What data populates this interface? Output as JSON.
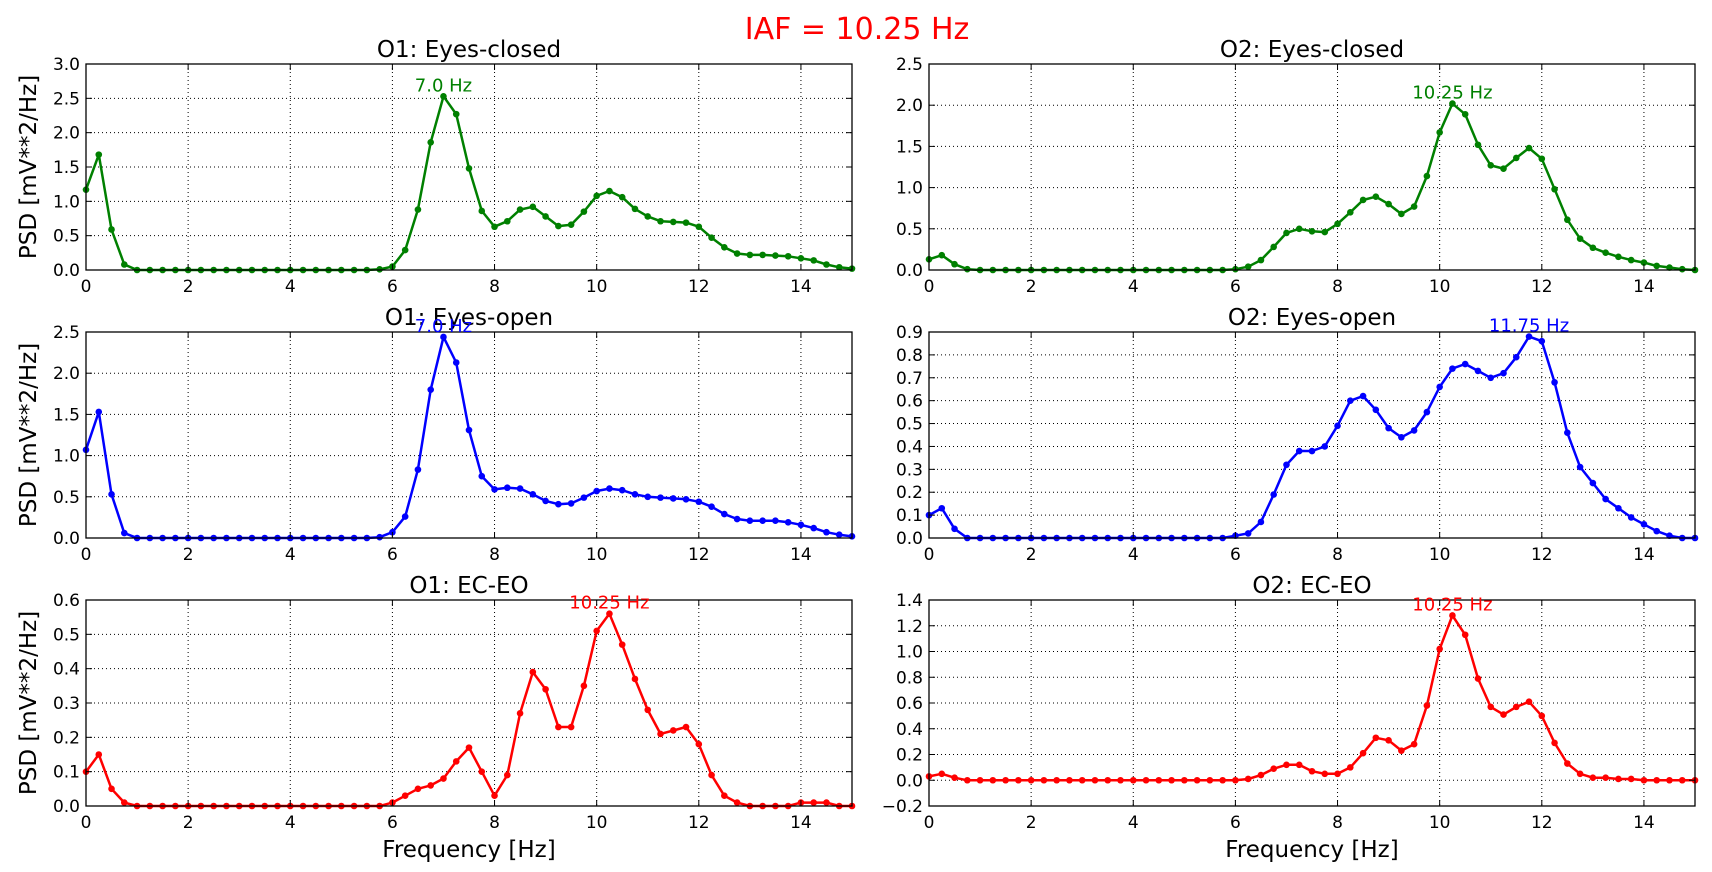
{
  "figure": {
    "suptitle": "IAF = 10.25 Hz",
    "suptitle_color": "#ff0000"
  },
  "chart_data": [
    {
      "type": "line",
      "title": "O1: Eyes-closed",
      "xlabel": "",
      "ylabel": "PSD [mV**2/Hz]",
      "xlim": [
        0,
        15
      ],
      "ylim": [
        0,
        3.0
      ],
      "xticks": [
        "0",
        "2",
        "4",
        "6",
        "8",
        "10",
        "12",
        "14"
      ],
      "yticks": [
        "0.0",
        "0.5",
        "1.0",
        "1.5",
        "2.0",
        "2.5",
        "3.0"
      ],
      "grid": true,
      "color": "#008000",
      "peak_label": "7.0 Hz",
      "peak_x": 7.0,
      "series": [
        {
          "x": [
            0,
            0.25,
            0.5,
            0.75,
            1,
            1.25,
            1.5,
            1.75,
            2,
            2.25,
            2.5,
            2.75,
            3,
            3.25,
            3.5,
            3.75,
            4,
            4.25,
            4.5,
            4.75,
            5,
            5.25,
            5.5,
            5.75,
            6,
            6.25,
            6.5,
            6.75,
            7,
            7.25,
            7.5,
            7.75,
            8,
            8.25,
            8.5,
            8.75,
            9,
            9.25,
            9.5,
            9.75,
            10,
            10.25,
            10.5,
            10.75,
            11,
            11.25,
            11.5,
            11.75,
            12,
            12.25,
            12.5,
            12.75,
            13,
            13.25,
            13.5,
            13.75,
            14,
            14.25,
            14.5,
            14.75,
            15
          ],
          "values": [
            1.17,
            1.68,
            0.59,
            0.08,
            0.0,
            0.0,
            0.0,
            0.0,
            0.0,
            0.0,
            0.0,
            0.0,
            0.0,
            0.0,
            0.0,
            0.0,
            0.0,
            0.0,
            0.0,
            0.0,
            0.0,
            0.0,
            0.0,
            0.01,
            0.05,
            0.29,
            0.88,
            1.86,
            2.53,
            2.27,
            1.48,
            0.86,
            0.63,
            0.71,
            0.88,
            0.92,
            0.78,
            0.64,
            0.66,
            0.85,
            1.08,
            1.15,
            1.06,
            0.89,
            0.78,
            0.71,
            0.7,
            0.69,
            0.63,
            0.47,
            0.33,
            0.24,
            0.22,
            0.22,
            0.21,
            0.2,
            0.17,
            0.14,
            0.08,
            0.04,
            0.02
          ]
        }
      ]
    },
    {
      "type": "line",
      "title": "O2: Eyes-closed",
      "xlabel": "",
      "ylabel": "",
      "xlim": [
        0,
        15
      ],
      "ylim": [
        0,
        2.5
      ],
      "xticks": [
        "0",
        "2",
        "4",
        "6",
        "8",
        "10",
        "12",
        "14"
      ],
      "yticks": [
        "0.0",
        "0.5",
        "1.0",
        "1.5",
        "2.0",
        "2.5"
      ],
      "grid": true,
      "color": "#008000",
      "peak_label": "10.25 Hz",
      "peak_x": 10.25,
      "series": [
        {
          "x": [
            0,
            0.25,
            0.5,
            0.75,
            1,
            1.25,
            1.5,
            1.75,
            2,
            2.25,
            2.5,
            2.75,
            3,
            3.25,
            3.5,
            3.75,
            4,
            4.25,
            4.5,
            4.75,
            5,
            5.25,
            5.5,
            5.75,
            6,
            6.25,
            6.5,
            6.75,
            7,
            7.25,
            7.5,
            7.75,
            8,
            8.25,
            8.5,
            8.75,
            9,
            9.25,
            9.5,
            9.75,
            10,
            10.25,
            10.5,
            10.75,
            11,
            11.25,
            11.5,
            11.75,
            12,
            12.25,
            12.5,
            12.75,
            13,
            13.25,
            13.5,
            13.75,
            14,
            14.25,
            14.5,
            14.75,
            15
          ],
          "values": [
            0.13,
            0.18,
            0.07,
            0.01,
            0.0,
            0.0,
            0.0,
            0.0,
            0.0,
            0.0,
            0.0,
            0.0,
            0.0,
            0.0,
            0.0,
            0.0,
            0.0,
            0.0,
            0.0,
            0.0,
            0.0,
            0.0,
            0.0,
            0.0,
            0.01,
            0.04,
            0.12,
            0.28,
            0.45,
            0.5,
            0.47,
            0.46,
            0.56,
            0.7,
            0.85,
            0.89,
            0.8,
            0.68,
            0.77,
            1.14,
            1.67,
            2.02,
            1.89,
            1.52,
            1.27,
            1.23,
            1.36,
            1.48,
            1.35,
            0.98,
            0.61,
            0.38,
            0.27,
            0.21,
            0.16,
            0.12,
            0.09,
            0.05,
            0.03,
            0.01,
            0.0
          ]
        }
      ]
    },
    {
      "type": "line",
      "title": "O1: Eyes-open",
      "xlabel": "",
      "ylabel": "PSD [mV**2/Hz]",
      "xlim": [
        0,
        15
      ],
      "ylim": [
        0,
        2.5
      ],
      "xticks": [
        "0",
        "2",
        "4",
        "6",
        "8",
        "10",
        "12",
        "14"
      ],
      "yticks": [
        "0.0",
        "0.5",
        "1.0",
        "1.5",
        "2.0",
        "2.5"
      ],
      "grid": true,
      "color": "#0000ff",
      "peak_label": "7.0 Hz",
      "peak_x": 7.0,
      "series": [
        {
          "x": [
            0,
            0.25,
            0.5,
            0.75,
            1,
            1.25,
            1.5,
            1.75,
            2,
            2.25,
            2.5,
            2.75,
            3,
            3.25,
            3.5,
            3.75,
            4,
            4.25,
            4.5,
            4.75,
            5,
            5.25,
            5.5,
            5.75,
            6,
            6.25,
            6.5,
            6.75,
            7,
            7.25,
            7.5,
            7.75,
            8,
            8.25,
            8.5,
            8.75,
            9,
            9.25,
            9.5,
            9.75,
            10,
            10.25,
            10.5,
            10.75,
            11,
            11.25,
            11.5,
            11.75,
            12,
            12.25,
            12.5,
            12.75,
            13,
            13.25,
            13.5,
            13.75,
            14,
            14.25,
            14.5,
            14.75,
            15
          ],
          "values": [
            1.07,
            1.53,
            0.53,
            0.06,
            0.0,
            0.0,
            0.0,
            0.0,
            0.0,
            0.0,
            0.0,
            0.0,
            0.0,
            0.0,
            0.0,
            0.0,
            0.0,
            0.0,
            0.0,
            0.0,
            0.0,
            0.0,
            0.0,
            0.01,
            0.07,
            0.26,
            0.83,
            1.8,
            2.44,
            2.13,
            1.31,
            0.75,
            0.59,
            0.61,
            0.6,
            0.53,
            0.45,
            0.41,
            0.42,
            0.49,
            0.57,
            0.6,
            0.58,
            0.53,
            0.5,
            0.49,
            0.48,
            0.47,
            0.44,
            0.38,
            0.29,
            0.23,
            0.21,
            0.21,
            0.21,
            0.19,
            0.16,
            0.12,
            0.07,
            0.04,
            0.02
          ]
        }
      ]
    },
    {
      "type": "line",
      "title": "O2: Eyes-open",
      "xlabel": "",
      "ylabel": "",
      "xlim": [
        0,
        15
      ],
      "ylim": [
        0,
        0.9
      ],
      "xticks": [
        "0",
        "2",
        "4",
        "6",
        "8",
        "10",
        "12",
        "14"
      ],
      "yticks": [
        "0.0",
        "0.1",
        "0.2",
        "0.3",
        "0.4",
        "0.5",
        "0.6",
        "0.7",
        "0.8",
        "0.9"
      ],
      "grid": true,
      "color": "#0000ff",
      "peak_label": "11.75 Hz",
      "peak_x": 11.75,
      "series": [
        {
          "x": [
            0,
            0.25,
            0.5,
            0.75,
            1,
            1.25,
            1.5,
            1.75,
            2,
            2.25,
            2.5,
            2.75,
            3,
            3.25,
            3.5,
            3.75,
            4,
            4.25,
            4.5,
            4.75,
            5,
            5.25,
            5.5,
            5.75,
            6,
            6.25,
            6.5,
            6.75,
            7,
            7.25,
            7.5,
            7.75,
            8,
            8.25,
            8.5,
            8.75,
            9,
            9.25,
            9.5,
            9.75,
            10,
            10.25,
            10.5,
            10.75,
            11,
            11.25,
            11.5,
            11.75,
            12,
            12.25,
            12.5,
            12.75,
            13,
            13.25,
            13.5,
            13.75,
            14,
            14.25,
            14.5,
            14.75,
            15
          ],
          "values": [
            0.1,
            0.13,
            0.04,
            0.0,
            0.0,
            0.0,
            0.0,
            0.0,
            0.0,
            0.0,
            0.0,
            0.0,
            0.0,
            0.0,
            0.0,
            0.0,
            0.0,
            0.0,
            0.0,
            0.0,
            0.0,
            0.0,
            0.0,
            0.0,
            0.01,
            0.02,
            0.07,
            0.19,
            0.32,
            0.38,
            0.38,
            0.4,
            0.49,
            0.6,
            0.62,
            0.56,
            0.48,
            0.44,
            0.47,
            0.55,
            0.66,
            0.74,
            0.76,
            0.73,
            0.7,
            0.72,
            0.79,
            0.88,
            0.86,
            0.68,
            0.46,
            0.31,
            0.24,
            0.17,
            0.13,
            0.09,
            0.06,
            0.03,
            0.01,
            0.0,
            0.0
          ]
        }
      ]
    },
    {
      "type": "line",
      "title": "O1: EC-EO",
      "xlabel": "Frequency [Hz]",
      "ylabel": "PSD [mV**2/Hz]",
      "xlim": [
        0,
        15
      ],
      "ylim": [
        0,
        0.6
      ],
      "xticks": [
        "0",
        "2",
        "4",
        "6",
        "8",
        "10",
        "12",
        "14"
      ],
      "yticks": [
        "0.0",
        "0.1",
        "0.2",
        "0.3",
        "0.4",
        "0.5",
        "0.6"
      ],
      "grid": true,
      "color": "#ff0000",
      "peak_label": "10.25 Hz",
      "peak_x": 10.25,
      "series": [
        {
          "x": [
            0,
            0.25,
            0.5,
            0.75,
            1,
            1.25,
            1.5,
            1.75,
            2,
            2.25,
            2.5,
            2.75,
            3,
            3.25,
            3.5,
            3.75,
            4,
            4.25,
            4.5,
            4.75,
            5,
            5.25,
            5.5,
            5.75,
            6,
            6.25,
            6.5,
            6.75,
            7,
            7.25,
            7.5,
            7.75,
            8,
            8.25,
            8.5,
            8.75,
            9,
            9.25,
            9.5,
            9.75,
            10,
            10.25,
            10.5,
            10.75,
            11,
            11.25,
            11.5,
            11.75,
            12,
            12.25,
            12.5,
            12.75,
            13,
            13.25,
            13.5,
            13.75,
            14,
            14.25,
            14.5,
            14.75,
            15
          ],
          "values": [
            0.1,
            0.15,
            0.05,
            0.01,
            0.0,
            0.0,
            0.0,
            0.0,
            0.0,
            0.0,
            0.0,
            0.0,
            0.0,
            0.0,
            0.0,
            0.0,
            0.0,
            0.0,
            0.0,
            0.0,
            0.0,
            0.0,
            0.0,
            0.0,
            0.01,
            0.03,
            0.05,
            0.06,
            0.08,
            0.13,
            0.17,
            0.1,
            0.03,
            0.09,
            0.27,
            0.39,
            0.34,
            0.23,
            0.23,
            0.35,
            0.51,
            0.56,
            0.47,
            0.37,
            0.28,
            0.21,
            0.22,
            0.23,
            0.18,
            0.09,
            0.03,
            0.01,
            0.0,
            0.0,
            0.0,
            0.0,
            0.01,
            0.01,
            0.01,
            0.0,
            0.0
          ]
        }
      ]
    },
    {
      "type": "line",
      "title": "O2: EC-EO",
      "xlabel": "Frequency [Hz]",
      "ylabel": "",
      "xlim": [
        0,
        15
      ],
      "ylim": [
        -0.2,
        1.4
      ],
      "xticks": [
        "0",
        "2",
        "4",
        "6",
        "8",
        "10",
        "12",
        "14"
      ],
      "yticks": [
        "−0.2",
        "0.0",
        "0.2",
        "0.4",
        "0.6",
        "0.8",
        "1.0",
        "1.2",
        "1.4"
      ],
      "grid": true,
      "color": "#ff0000",
      "peak_label": "10.25 Hz",
      "peak_x": 10.25,
      "series": [
        {
          "x": [
            0,
            0.25,
            0.5,
            0.75,
            1,
            1.25,
            1.5,
            1.75,
            2,
            2.25,
            2.5,
            2.75,
            3,
            3.25,
            3.5,
            3.75,
            4,
            4.25,
            4.5,
            4.75,
            5,
            5.25,
            5.5,
            5.75,
            6,
            6.25,
            6.5,
            6.75,
            7,
            7.25,
            7.5,
            7.75,
            8,
            8.25,
            8.5,
            8.75,
            9,
            9.25,
            9.5,
            9.75,
            10,
            10.25,
            10.5,
            10.75,
            11,
            11.25,
            11.5,
            11.75,
            12,
            12.25,
            12.5,
            12.75,
            13,
            13.25,
            13.5,
            13.75,
            14,
            14.25,
            14.5,
            14.75,
            15
          ],
          "values": [
            0.03,
            0.05,
            0.02,
            0.0,
            0.0,
            0.0,
            0.0,
            0.0,
            0.0,
            0.0,
            0.0,
            0.0,
            0.0,
            0.0,
            0.0,
            0.0,
            0.0,
            0.0,
            0.0,
            0.0,
            0.0,
            0.0,
            0.0,
            0.0,
            0.0,
            0.01,
            0.04,
            0.09,
            0.12,
            0.12,
            0.07,
            0.05,
            0.05,
            0.1,
            0.21,
            0.33,
            0.31,
            0.23,
            0.28,
            0.58,
            1.02,
            1.28,
            1.13,
            0.79,
            0.57,
            0.51,
            0.57,
            0.61,
            0.5,
            0.29,
            0.13,
            0.05,
            0.02,
            0.02,
            0.01,
            0.01,
            0.0,
            0.0,
            0.0,
            0.0,
            0.0
          ]
        }
      ]
    }
  ]
}
